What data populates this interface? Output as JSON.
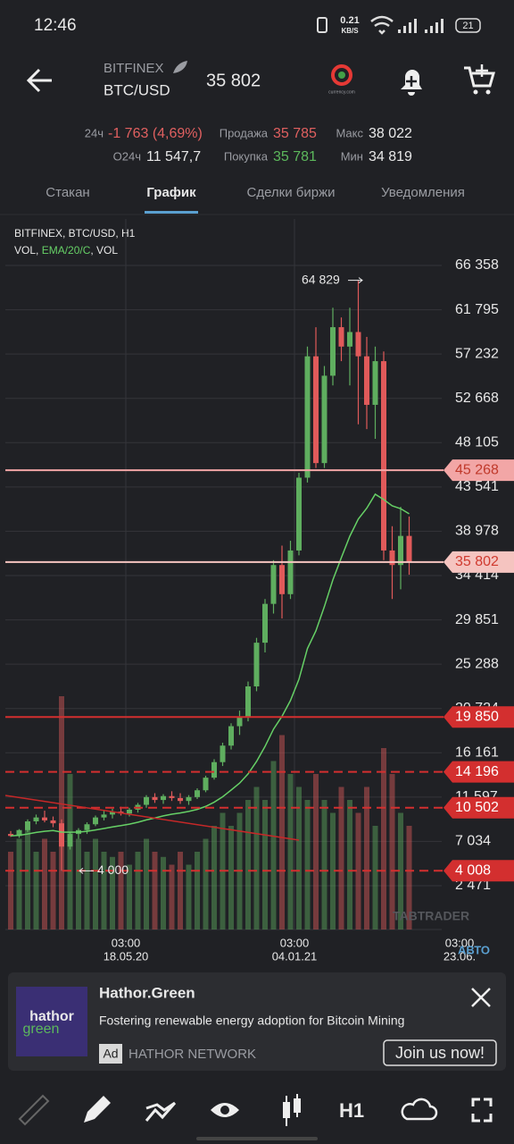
{
  "status_bar": {
    "time": "12:46",
    "speed": "0.21",
    "speed_unit": "KB/S",
    "battery": "21"
  },
  "header": {
    "exchange": "BITFINEX",
    "pair": "BTC/USD",
    "price": "35 802",
    "logo": "currency.com"
  },
  "stats": {
    "change_label": "24ч",
    "change": "-1 763 (4,69%)",
    "sell_label": "Продажа",
    "sell": "35 785",
    "max_label": "Макс",
    "max": "38 022",
    "volume_label": "O24ч",
    "volume": "11 547,7",
    "buy_label": "Покупка",
    "buy": "35 781",
    "min_label": "Мин",
    "min": "34 819"
  },
  "tabs": [
    "Стакан",
    "График",
    "Сделки биржи",
    "Уведомления"
  ],
  "chart": {
    "type": "candlestick",
    "info": "BITFINEX, BTC/USD, H1",
    "indicators": [
      "VOL, ",
      "EMA/20/C",
      ", VOL"
    ],
    "watermark": "TABTRADER",
    "auto_label": "АВТО",
    "ylim": [
      -2040,
      71145
    ],
    "yticks": [
      {
        "value": 66358,
        "label": "66 358"
      },
      {
        "value": 61795,
        "label": "61 795"
      },
      {
        "value": 57232,
        "label": "57 232"
      },
      {
        "value": 52668,
        "label": "52 668"
      },
      {
        "value": 48105,
        "label": "48 105"
      },
      {
        "value": 43541,
        "label": "43 541"
      },
      {
        "value": 38978,
        "label": "38 978"
      },
      {
        "value": 34414,
        "label": "34 414"
      },
      {
        "value": 29851,
        "label": "29 851"
      },
      {
        "value": 25288,
        "label": "25 288"
      },
      {
        "value": 20724,
        "label": "20 724"
      },
      {
        "value": 16161,
        "label": "16 161"
      },
      {
        "value": 11597,
        "label": "11 597"
      },
      {
        "value": 7034,
        "label": "7 034"
      },
      {
        "value": 2471,
        "label": "2 471"
      }
    ],
    "xlabels": [
      {
        "time": "03:00",
        "date": "18.05.20"
      },
      {
        "time": "03:00",
        "date": "04.01.21"
      },
      {
        "time": "03:00",
        "date": "23.06."
      }
    ],
    "vlim": [
      0,
      100
    ],
    "up_color": "#5fae5f",
    "down_color": "#e05a5a",
    "ema_color": "#66d066",
    "open": [
      7800,
      7600,
      8200,
      9100,
      9500,
      9200,
      8900,
      6500,
      7800,
      8200,
      8800,
      9500,
      9800,
      10100,
      9900,
      10300,
      10800,
      11600,
      11300,
      11700,
      11500,
      11200,
      11600,
      12300,
      13600,
      15200,
      16900,
      18900,
      19800,
      23000,
      27500,
      31500,
      35500,
      32500,
      37000,
      44500,
      57000,
      46000,
      55000,
      60000,
      58000,
      59500,
      57000,
      52000,
      56500,
      37000,
      35500,
      38500
    ],
    "high": [
      8100,
      8300,
      9300,
      9800,
      10200,
      9600,
      9300,
      8000,
      8400,
      9000,
      9700,
      10200,
      10400,
      10600,
      10500,
      11000,
      11800,
      12000,
      11900,
      12200,
      12000,
      11800,
      12500,
      13800,
      15500,
      17200,
      19200,
      20500,
      23500,
      28000,
      32000,
      36000,
      37500,
      38000,
      45000,
      58000,
      60000,
      56000,
      62000,
      61000,
      62000,
      64829,
      59000,
      58000,
      57500,
      39500,
      41500,
      40500
    ],
    "low": [
      7500,
      7400,
      8000,
      8800,
      9000,
      8500,
      4000,
      6200,
      7300,
      7800,
      8600,
      9200,
      9400,
      9700,
      9600,
      10000,
      10500,
      11000,
      10900,
      11200,
      10900,
      10800,
      11400,
      12100,
      13400,
      14800,
      16500,
      18000,
      19400,
      22500,
      26500,
      30500,
      30000,
      32000,
      36500,
      44000,
      45500,
      45500,
      54000,
      56500,
      54000,
      50000,
      49500,
      48500,
      36000,
      32000,
      33000,
      34500
    ],
    "close": [
      7600,
      8200,
      9100,
      9500,
      9200,
      8900,
      6500,
      7800,
      8200,
      8800,
      9500,
      9800,
      10100,
      9900,
      10300,
      10800,
      11600,
      11300,
      11700,
      11500,
      11200,
      11600,
      12300,
      13600,
      15200,
      16900,
      18900,
      19800,
      23000,
      27500,
      31500,
      35500,
      32500,
      37000,
      44500,
      57000,
      46000,
      55000,
      60000,
      58000,
      59500,
      57000,
      52000,
      56500,
      37000,
      35500,
      38500,
      35802
    ],
    "volume": [
      30,
      35,
      40,
      30,
      35,
      30,
      90,
      60,
      35,
      30,
      35,
      30,
      28,
      30,
      25,
      30,
      35,
      30,
      28,
      25,
      30,
      25,
      30,
      35,
      40,
      45,
      40,
      45,
      50,
      55,
      50,
      65,
      75,
      60,
      55,
      50,
      60,
      50,
      45,
      55,
      50,
      45,
      55,
      40,
      70,
      60,
      45,
      40
    ],
    "levels": [
      {
        "value": 45268,
        "label": "45 268",
        "color": "#f2a6a6",
        "text_color": "#c0392b",
        "dashed": false
      },
      {
        "value": 35802,
        "label": "35 802",
        "color": "#f5c4c0",
        "text_color": "#d03a2f",
        "dashed": false
      },
      {
        "value": 19850,
        "label": "19 850",
        "color": "#d32f2f",
        "text_color": "#ffffff",
        "dashed": false
      },
      {
        "value": 14196,
        "label": "14 196",
        "color": "#d32f2f",
        "text_color": "#ffffff",
        "dashed": true
      },
      {
        "value": 10502,
        "label": "10 502",
        "color": "#d32f2f",
        "text_color": "#ffffff",
        "dashed": true
      },
      {
        "value": 4008,
        "label": "4 008",
        "color": "#d32f2f",
        "text_color": "#ffffff",
        "dashed": true
      }
    ],
    "annotations": [
      {
        "text": "64 829",
        "value": 64829
      },
      {
        "text": "4 000",
        "value": 4000
      }
    ]
  },
  "ad": {
    "logo_top": "hathor",
    "logo_bottom": "green",
    "title": "Hathor.Green",
    "text": "Fostering renewable energy adoption for Bitcoin Mining",
    "badge": "Ad",
    "advertiser": "HATHOR NETWORK",
    "button": "Join us now!"
  },
  "toolbar": {
    "timeframe": "H1"
  }
}
